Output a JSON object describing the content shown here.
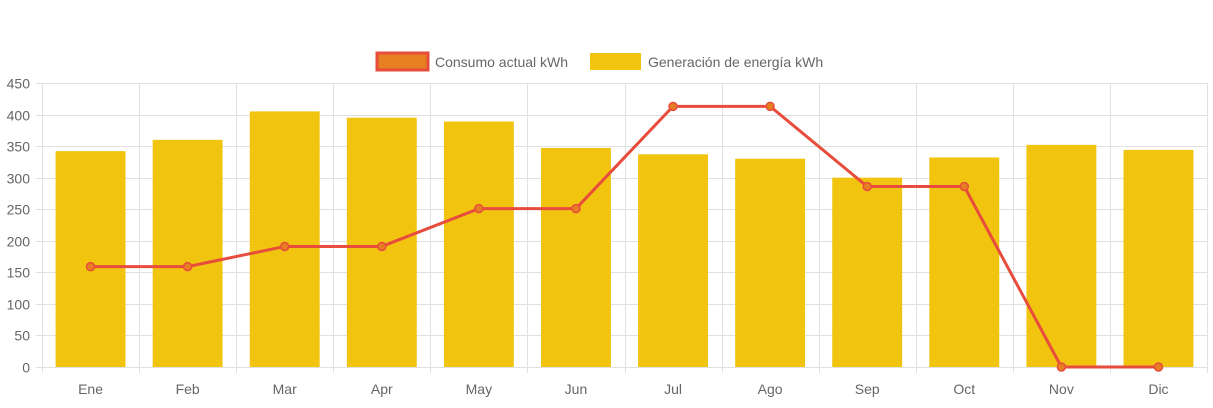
{
  "chart_data": {
    "type": "bar",
    "title": "",
    "xlabel": "",
    "ylabel": "",
    "categories": [
      "Ene",
      "Feb",
      "Mar",
      "Apr",
      "May",
      "Jun",
      "Jul",
      "Ago",
      "Sep",
      "Oct",
      "Nov",
      "Dic"
    ],
    "ylim": [
      0,
      450
    ],
    "yticks": [
      0,
      50,
      100,
      150,
      200,
      250,
      300,
      350,
      400,
      450
    ],
    "grid": true,
    "legend_placement": "top-center",
    "series": [
      {
        "name": "Consumo actual kWh",
        "type": "line",
        "color": "#e74c3c",
        "fill": "#e67e22",
        "values": [
          159,
          159,
          191,
          191,
          251,
          251,
          413,
          413,
          286,
          286,
          0,
          0
        ]
      },
      {
        "name": "Generación de energía kWh",
        "type": "bar",
        "color": "#f1c40f",
        "values": [
          342,
          360,
          405,
          395,
          389,
          347,
          337,
          330,
          300,
          332,
          352,
          344
        ]
      }
    ]
  }
}
